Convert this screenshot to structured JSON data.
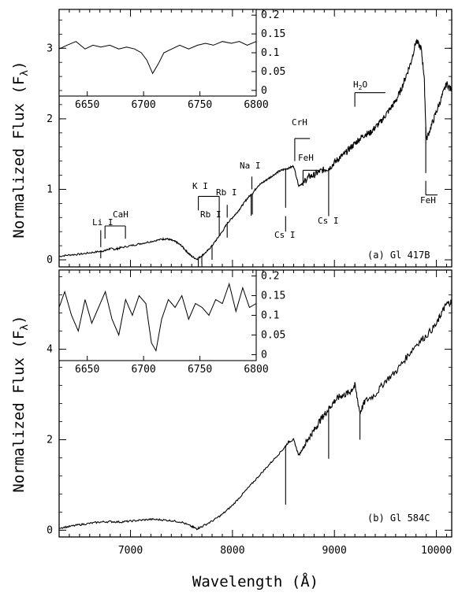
{
  "chart_data": {
    "type": "line",
    "xlabel": "Wavelength (Å)",
    "xlim": [
      6300,
      10150
    ],
    "x_ticks": [
      "7000",
      "8000",
      "9000",
      "10000"
    ],
    "panels": [
      {
        "id": "a",
        "label": "(a) Gl 417B",
        "ylabel_main": "Normalized Flux (F",
        "ylabel_sub": "λ",
        "ylabel_close": ")",
        "ylim": [
          -0.1,
          3.55
        ],
        "y_ticks": [
          "0",
          "1",
          "2",
          "3"
        ],
        "spectrum": [
          [
            6300,
            0.05
          ],
          [
            6400,
            0.07
          ],
          [
            6500,
            0.08
          ],
          [
            6600,
            0.1
          ],
          [
            6700,
            0.12
          ],
          [
            6750,
            0.13
          ],
          [
            6800,
            0.16
          ],
          [
            6850,
            0.15
          ],
          [
            6900,
            0.17
          ],
          [
            7000,
            0.2
          ],
          [
            7100,
            0.23
          ],
          [
            7200,
            0.26
          ],
          [
            7300,
            0.29
          ],
          [
            7350,
            0.3
          ],
          [
            7400,
            0.28
          ],
          [
            7450,
            0.25
          ],
          [
            7500,
            0.2
          ],
          [
            7550,
            0.12
          ],
          [
            7600,
            0.05
          ],
          [
            7650,
            0.01
          ],
          [
            7700,
            0.06
          ],
          [
            7750,
            0.12
          ],
          [
            7800,
            0.2
          ],
          [
            7850,
            0.3
          ],
          [
            7900,
            0.4
          ],
          [
            7950,
            0.52
          ],
          [
            8000,
            0.6
          ],
          [
            8050,
            0.68
          ],
          [
            8100,
            0.78
          ],
          [
            8150,
            0.88
          ],
          [
            8200,
            0.95
          ],
          [
            8250,
            1.05
          ],
          [
            8300,
            1.1
          ],
          [
            8350,
            1.15
          ],
          [
            8400,
            1.2
          ],
          [
            8450,
            1.25
          ],
          [
            8500,
            1.28
          ],
          [
            8550,
            1.3
          ],
          [
            8600,
            1.33
          ],
          [
            8650,
            1.05
          ],
          [
            8700,
            1.1
          ],
          [
            8750,
            1.18
          ],
          [
            8800,
            1.2
          ],
          [
            8850,
            1.25
          ],
          [
            8900,
            1.28
          ],
          [
            8950,
            1.3
          ],
          [
            9000,
            1.38
          ],
          [
            9050,
            1.45
          ],
          [
            9100,
            1.5
          ],
          [
            9150,
            1.58
          ],
          [
            9200,
            1.65
          ],
          [
            9250,
            1.72
          ],
          [
            9300,
            1.78
          ],
          [
            9350,
            1.8
          ],
          [
            9400,
            1.88
          ],
          [
            9450,
            1.95
          ],
          [
            9500,
            2.05
          ],
          [
            9550,
            2.15
          ],
          [
            9600,
            2.25
          ],
          [
            9650,
            2.4
          ],
          [
            9700,
            2.6
          ],
          [
            9750,
            2.8
          ],
          [
            9800,
            3.1
          ],
          [
            9850,
            3.0
          ],
          [
            9880,
            2.6
          ],
          [
            9900,
            1.7
          ],
          [
            9950,
            1.9
          ],
          [
            10000,
            2.1
          ],
          [
            10050,
            2.3
          ],
          [
            10100,
            2.5
          ],
          [
            10150,
            2.4
          ]
        ],
        "dips": [
          [
            6708,
            0.1
          ],
          [
            7665,
            0.12
          ],
          [
            7699,
            0.12
          ],
          [
            7800,
            0.2
          ],
          [
            7948,
            0.2
          ],
          [
            8183,
            0.3
          ],
          [
            8195,
            0.3
          ],
          [
            8521,
            0.55
          ],
          [
            8943,
            0.4
          ],
          [
            9896,
            0.65
          ]
        ],
        "annotations": [
          {
            "name": "li-i",
            "text": "Li I"
          },
          {
            "name": "cah",
            "text": "CaH"
          },
          {
            "name": "k-i",
            "text": "K I"
          },
          {
            "name": "rb-i-7800",
            "text": "Rb I"
          },
          {
            "name": "rb-i-7948",
            "text": "Rb I"
          },
          {
            "name": "na-i",
            "text": "Na I"
          },
          {
            "name": "cs-i-8521",
            "text": "Cs I"
          },
          {
            "name": "crh",
            "text": "CrH"
          },
          {
            "name": "feh-8700",
            "text": "FeH"
          },
          {
            "name": "cs-i-8943",
            "text": "Cs I"
          },
          {
            "name": "h2o-main",
            "text": "H"
          },
          {
            "name": "h2o-sub",
            "text": "2"
          },
          {
            "name": "h2o-end",
            "text": "O"
          },
          {
            "name": "feh-9896",
            "text": "FeH"
          }
        ],
        "inset": {
          "xlim": [
            6625,
            6800
          ],
          "x_ticks": [
            "6650",
            "6700",
            "6750",
            "6800"
          ],
          "ylim": [
            -0.015,
            0.215
          ],
          "y_ticks": [
            "0",
            "0.05",
            "0.1",
            "0.15",
            "0.2"
          ],
          "spectrum": [
            [
              6625,
              0.11
            ],
            [
              6632,
              0.12
            ],
            [
              6640,
              0.13
            ],
            [
              6648,
              0.11
            ],
            [
              6655,
              0.12
            ],
            [
              6662,
              0.115
            ],
            [
              6670,
              0.12
            ],
            [
              6678,
              0.11
            ],
            [
              6685,
              0.115
            ],
            [
              6692,
              0.11
            ],
            [
              6698,
              0.1
            ],
            [
              6703,
              0.08
            ],
            [
              6708,
              0.045
            ],
            [
              6713,
              0.07
            ],
            [
              6718,
              0.1
            ],
            [
              6725,
              0.11
            ],
            [
              6732,
              0.12
            ],
            [
              6740,
              0.11
            ],
            [
              6748,
              0.12
            ],
            [
              6755,
              0.125
            ],
            [
              6762,
              0.12
            ],
            [
              6770,
              0.13
            ],
            [
              6778,
              0.125
            ],
            [
              6785,
              0.13
            ],
            [
              6792,
              0.12
            ],
            [
              6800,
              0.13
            ]
          ]
        }
      },
      {
        "id": "b",
        "label": "(b) Gl 584C",
        "ylabel_main": "Normalized Flux (F",
        "ylabel_sub": "λ",
        "ylabel_close": ")",
        "ylim": [
          -0.15,
          5.75
        ],
        "y_ticks": [
          "0",
          "2",
          "4"
        ],
        "spectrum": [
          [
            6300,
            0.05
          ],
          [
            6400,
            0.08
          ],
          [
            6500,
            0.12
          ],
          [
            6600,
            0.15
          ],
          [
            6700,
            0.18
          ],
          [
            6800,
            0.19
          ],
          [
            6900,
            0.18
          ],
          [
            7000,
            0.2
          ],
          [
            7100,
            0.22
          ],
          [
            7200,
            0.24
          ],
          [
            7300,
            0.23
          ],
          [
            7400,
            0.21
          ],
          [
            7500,
            0.18
          ],
          [
            7600,
            0.08
          ],
          [
            7650,
            0.03
          ],
          [
            7700,
            0.08
          ],
          [
            7800,
            0.2
          ],
          [
            7900,
            0.35
          ],
          [
            8000,
            0.55
          ],
          [
            8100,
            0.8
          ],
          [
            8200,
            1.05
          ],
          [
            8300,
            1.3
          ],
          [
            8400,
            1.55
          ],
          [
            8500,
            1.8
          ],
          [
            8550,
            1.95
          ],
          [
            8600,
            2.0
          ],
          [
            8650,
            1.65
          ],
          [
            8700,
            1.85
          ],
          [
            8750,
            2.05
          ],
          [
            8800,
            2.2
          ],
          [
            8850,
            2.4
          ],
          [
            8900,
            2.55
          ],
          [
            8950,
            2.7
          ],
          [
            9000,
            2.85
          ],
          [
            9050,
            2.95
          ],
          [
            9100,
            3.0
          ],
          [
            9150,
            3.05
          ],
          [
            9200,
            3.2
          ],
          [
            9250,
            2.6
          ],
          [
            9300,
            2.85
          ],
          [
            9400,
            3.0
          ],
          [
            9500,
            3.3
          ],
          [
            9600,
            3.5
          ],
          [
            9700,
            3.8
          ],
          [
            9800,
            4.1
          ],
          [
            9900,
            4.3
          ],
          [
            10000,
            4.55
          ],
          [
            10050,
            4.8
          ],
          [
            10100,
            5.0
          ],
          [
            10150,
            5.05
          ]
        ],
        "dips": [
          [
            8521,
            1.3
          ],
          [
            8943,
            1.1
          ],
          [
            9250,
            0.6
          ]
        ],
        "inset": {
          "xlim": [
            6625,
            6800
          ],
          "x_ticks": [
            "6650",
            "6700",
            "6750",
            "6800"
          ],
          "ylim": [
            -0.015,
            0.215
          ],
          "y_ticks": [
            "0",
            "0.05",
            "0.1",
            "0.15",
            "0.2"
          ],
          "spectrum": [
            [
              6625,
              0.12
            ],
            [
              6630,
              0.16
            ],
            [
              6636,
              0.1
            ],
            [
              6642,
              0.06
            ],
            [
              6648,
              0.14
            ],
            [
              6654,
              0.08
            ],
            [
              6660,
              0.12
            ],
            [
              6666,
              0.16
            ],
            [
              6672,
              0.09
            ],
            [
              6678,
              0.05
            ],
            [
              6684,
              0.14
            ],
            [
              6690,
              0.1
            ],
            [
              6696,
              0.15
            ],
            [
              6702,
              0.13
            ],
            [
              6707,
              0.03
            ],
            [
              6711,
              0.01
            ],
            [
              6716,
              0.09
            ],
            [
              6722,
              0.14
            ],
            [
              6728,
              0.12
            ],
            [
              6734,
              0.15
            ],
            [
              6740,
              0.09
            ],
            [
              6746,
              0.13
            ],
            [
              6752,
              0.12
            ],
            [
              6758,
              0.1
            ],
            [
              6764,
              0.14
            ],
            [
              6770,
              0.13
            ],
            [
              6776,
              0.18
            ],
            [
              6782,
              0.11
            ],
            [
              6788,
              0.17
            ],
            [
              6794,
              0.12
            ],
            [
              6800,
              0.13
            ]
          ]
        }
      }
    ]
  }
}
